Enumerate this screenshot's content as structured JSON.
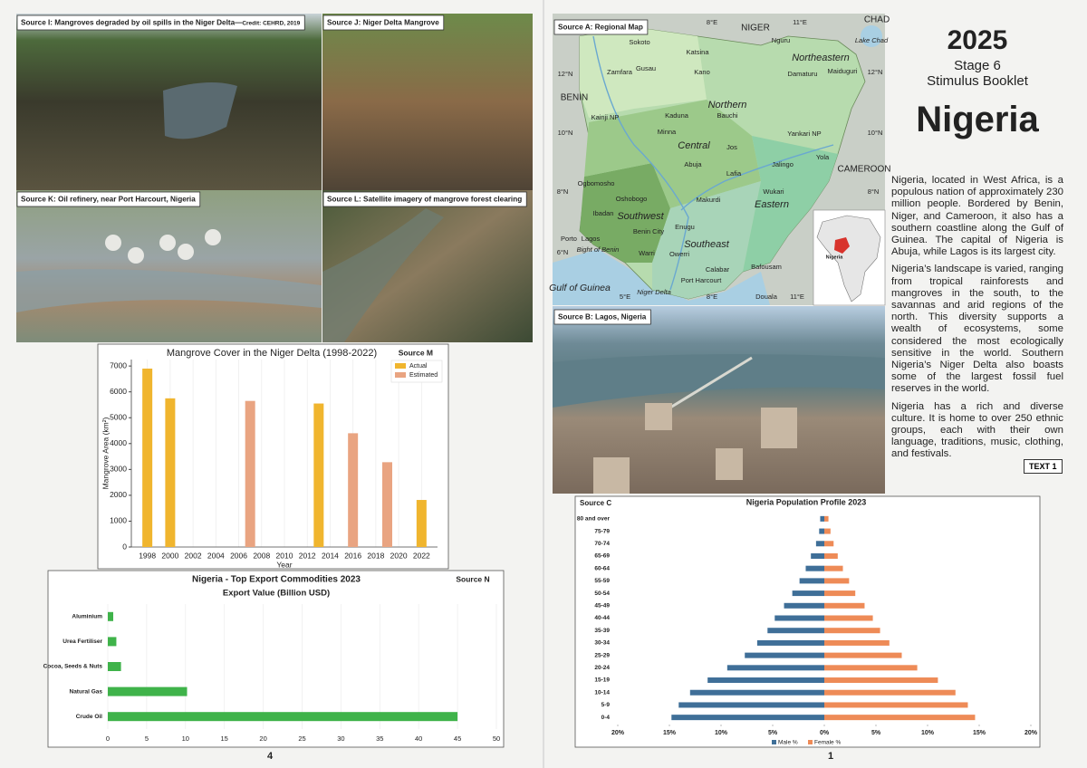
{
  "left_page": {
    "page_number": "4",
    "photos": [
      {
        "caption": "Source I: Mangroves degraded by oil spills in the Niger Delta—",
        "credit": "Credit: CEHRD, 2019"
      },
      {
        "caption": "Source J: Niger Delta Mangrove"
      },
      {
        "caption": "Source K: Oil refinery, near Port Harcourt, Nigeria"
      },
      {
        "caption": "Source L: Satellite imagery of mangrove forest clearing"
      }
    ]
  },
  "right_page": {
    "page_number": "1",
    "year": "2025",
    "stage": "Stage 6",
    "booklet": "Stimulus Booklet",
    "heading": "Nigeria",
    "paragraphs": [
      "Nigeria, located in West Africa, is a populous nation of approximately 230 million people. Bordered by Benin, Niger, and Cameroon, it also has a southern coastline along the Gulf of Guinea. The capital of Nigeria is Abuja, while Lagos is its largest city.",
      "Nigeria’s landscape is varied, ranging from tropical rainforests and mangroves in the south, to the savannas and arid regions of the north. This diversity supports a wealth of ecosystems, some considered the most ecologically sensitive in the world. Southern Nigeria’s Niger Delta also boasts some of the largest fossil fuel reserves in the world.",
      "Nigeria has a rich and diverse culture. It is home to over 250 ethnic groups, each with their own language, traditions, music, clothing, and festivals."
    ],
    "text_label": "TEXT 1",
    "map": {
      "caption": "Source A: Regional Map",
      "labels": [
        "Sokoto",
        "Katsina",
        "Kano",
        "Gusau",
        "Zamfara",
        "NIGER",
        "Nguru",
        "Northeastern",
        "Damaturu",
        "Maiduguri",
        "CHAD",
        "Lake Chad",
        "BENIN",
        "Kainji NP",
        "Kaduna",
        "Northern",
        "Bauchi",
        "Yankari NP",
        "Minna",
        "Central",
        "Abuja",
        "Jos",
        "Yola",
        "Jalingo",
        "CAMEROON",
        "Ogbomosho",
        "Oshobogo",
        "Ibadan",
        "Southwest",
        "Lafia",
        "Makurdi",
        "Wukari",
        "Eastern",
        "Benin City",
        "Enugu",
        "Southeast",
        "Porto",
        "Lagos",
        "Bight of Benin",
        "Warri",
        "Owerri",
        "Gulf of Guinea",
        "Port Harcourt",
        "Calabar",
        "Bafousam",
        "Douala",
        "Niger Delta",
        "12°N",
        "10°N",
        "8°N",
        "6°N",
        "12°N",
        "10°N",
        "8°N",
        "5°E",
        "8°E",
        "11°E",
        "8°E",
        "11°E",
        "Nigeria"
      ]
    },
    "photo": {
      "caption": "Source B: Lagos, Nigeria"
    }
  },
  "chart_data": [
    {
      "type": "bar",
      "title": "Mangrove Cover in the Niger Delta (1998-2022)",
      "source": "Source M",
      "xlabel": "Year",
      "ylabel": "Mangrove Area (km²)",
      "xlim": [
        1996.6,
        2023.4
      ],
      "xticks": [
        1998,
        2000,
        2002,
        2004,
        2006,
        2008,
        2010,
        2012,
        2014,
        2016,
        2018,
        2020,
        2022
      ],
      "ylim": [
        0,
        7250
      ],
      "yticks": [
        0,
        1000,
        2000,
        3000,
        4000,
        5000,
        6000,
        7000
      ],
      "grid": "x",
      "legend": "upper right",
      "series": [
        {
          "name": "Actual",
          "color": "#f0b52e",
          "x": [
            1998,
            2000,
            2013,
            2022
          ],
          "values": [
            6900,
            5750,
            5550,
            1820
          ]
        },
        {
          "name": "Estimated",
          "color": "#e9a481",
          "x": [
            2007,
            2016,
            2019
          ],
          "values": [
            5650,
            4400,
            3280
          ]
        }
      ]
    },
    {
      "type": "barh",
      "title": "Nigeria - Top Export Commodities 2023",
      "subtitle": "Export Value (Billion USD)",
      "source": "Source N",
      "categories": [
        "Aluminium",
        "Urea Fertiliser",
        "Cocoa, Seeds & Nuts",
        "Natural Gas",
        "Crude Oil"
      ],
      "values": [
        0.7,
        1.1,
        1.7,
        10.2,
        45
      ],
      "color": "#3fb34a",
      "xlim": [
        0,
        50
      ],
      "xticks": [
        0,
        5,
        10,
        15,
        20,
        25,
        30,
        35,
        40,
        45,
        50
      ],
      "grid": "x"
    },
    {
      "type": "pyramid",
      "title": "Nigeria Population Profile 2023",
      "source": "Source C",
      "categories": [
        "80 and over",
        "75-79",
        "70-74",
        "65-69",
        "60-64",
        "55-59",
        "50-54",
        "45-49",
        "40-44",
        "35-39",
        "30-34",
        "25-29",
        "20-24",
        "15-19",
        "10-14",
        "5-9",
        "0-4"
      ],
      "series": [
        {
          "name": "Male %",
          "color": "#3f6f98",
          "values": [
            -0.4,
            -0.5,
            -0.8,
            -1.3,
            -1.8,
            -2.4,
            -3.1,
            -3.9,
            -4.8,
            -5.5,
            -6.5,
            -7.7,
            -9.4,
            -11.3,
            -13.0,
            -14.1,
            -14.8
          ]
        },
        {
          "name": "Female %",
          "color": "#ee8b57",
          "values": [
            0.4,
            0.6,
            0.9,
            1.3,
            1.8,
            2.4,
            3.0,
            3.9,
            4.7,
            5.4,
            6.3,
            7.5,
            9.0,
            11.0,
            12.7,
            13.9,
            14.6
          ]
        }
      ],
      "xlim": [
        -20,
        20
      ],
      "xticks": [
        {
          "value": -20,
          "label": "20%"
        },
        {
          "value": -15,
          "label": "15%"
        },
        {
          "value": -10,
          "label": "10%"
        },
        {
          "value": -5,
          "label": "5%"
        },
        {
          "value": 0,
          "label": "0%"
        },
        {
          "value": 5,
          "label": "5%"
        },
        {
          "value": 10,
          "label": "10%"
        },
        {
          "value": 15,
          "label": "15%"
        },
        {
          "value": 20,
          "label": "20%"
        }
      ],
      "legend": "lower center"
    }
  ]
}
